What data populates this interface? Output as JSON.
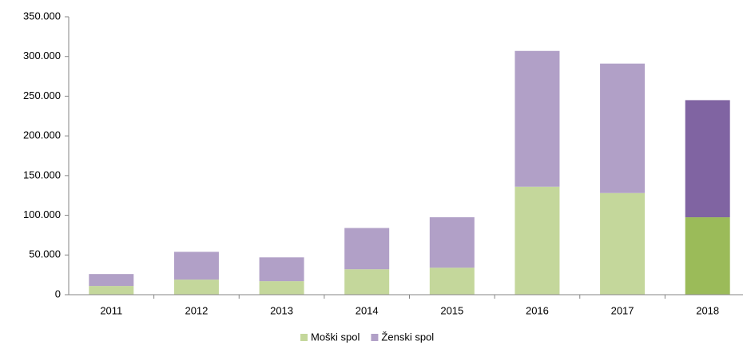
{
  "chart_data": {
    "type": "stacked_bar",
    "categories": [
      "2011",
      "2012",
      "2013",
      "2014",
      "2015",
      "2016",
      "2017",
      "2018"
    ],
    "series": [
      {
        "name": "Moški spol",
        "color": "#c4d79b",
        "highlight_color": "#9bbb59",
        "values": [
          11000,
          19000,
          17000,
          32000,
          34000,
          136000,
          128000,
          97500
        ]
      },
      {
        "name": "Ženski spol",
        "color": "#b1a0c7",
        "highlight_color": "#8064a2",
        "values": [
          15000,
          35000,
          30000,
          52000,
          63500,
          171000,
          163000,
          147500
        ]
      }
    ],
    "highlight_category": "2018",
    "ylim": [
      0,
      350000
    ],
    "yticks": [
      0,
      {
        "value": 50000,
        "label": "50.000"
      },
      {
        "value": 100000,
        "label": "100.000"
      },
      {
        "value": 150000,
        "label": "150.000"
      },
      {
        "value": 200000,
        "label": "200.000"
      },
      {
        "value": 250000,
        "label": "250.000"
      },
      {
        "value": 300000,
        "label": "300.000"
      },
      {
        "value": 350000,
        "label": "350.000"
      }
    ],
    "grid": false,
    "legend": "bottom"
  }
}
